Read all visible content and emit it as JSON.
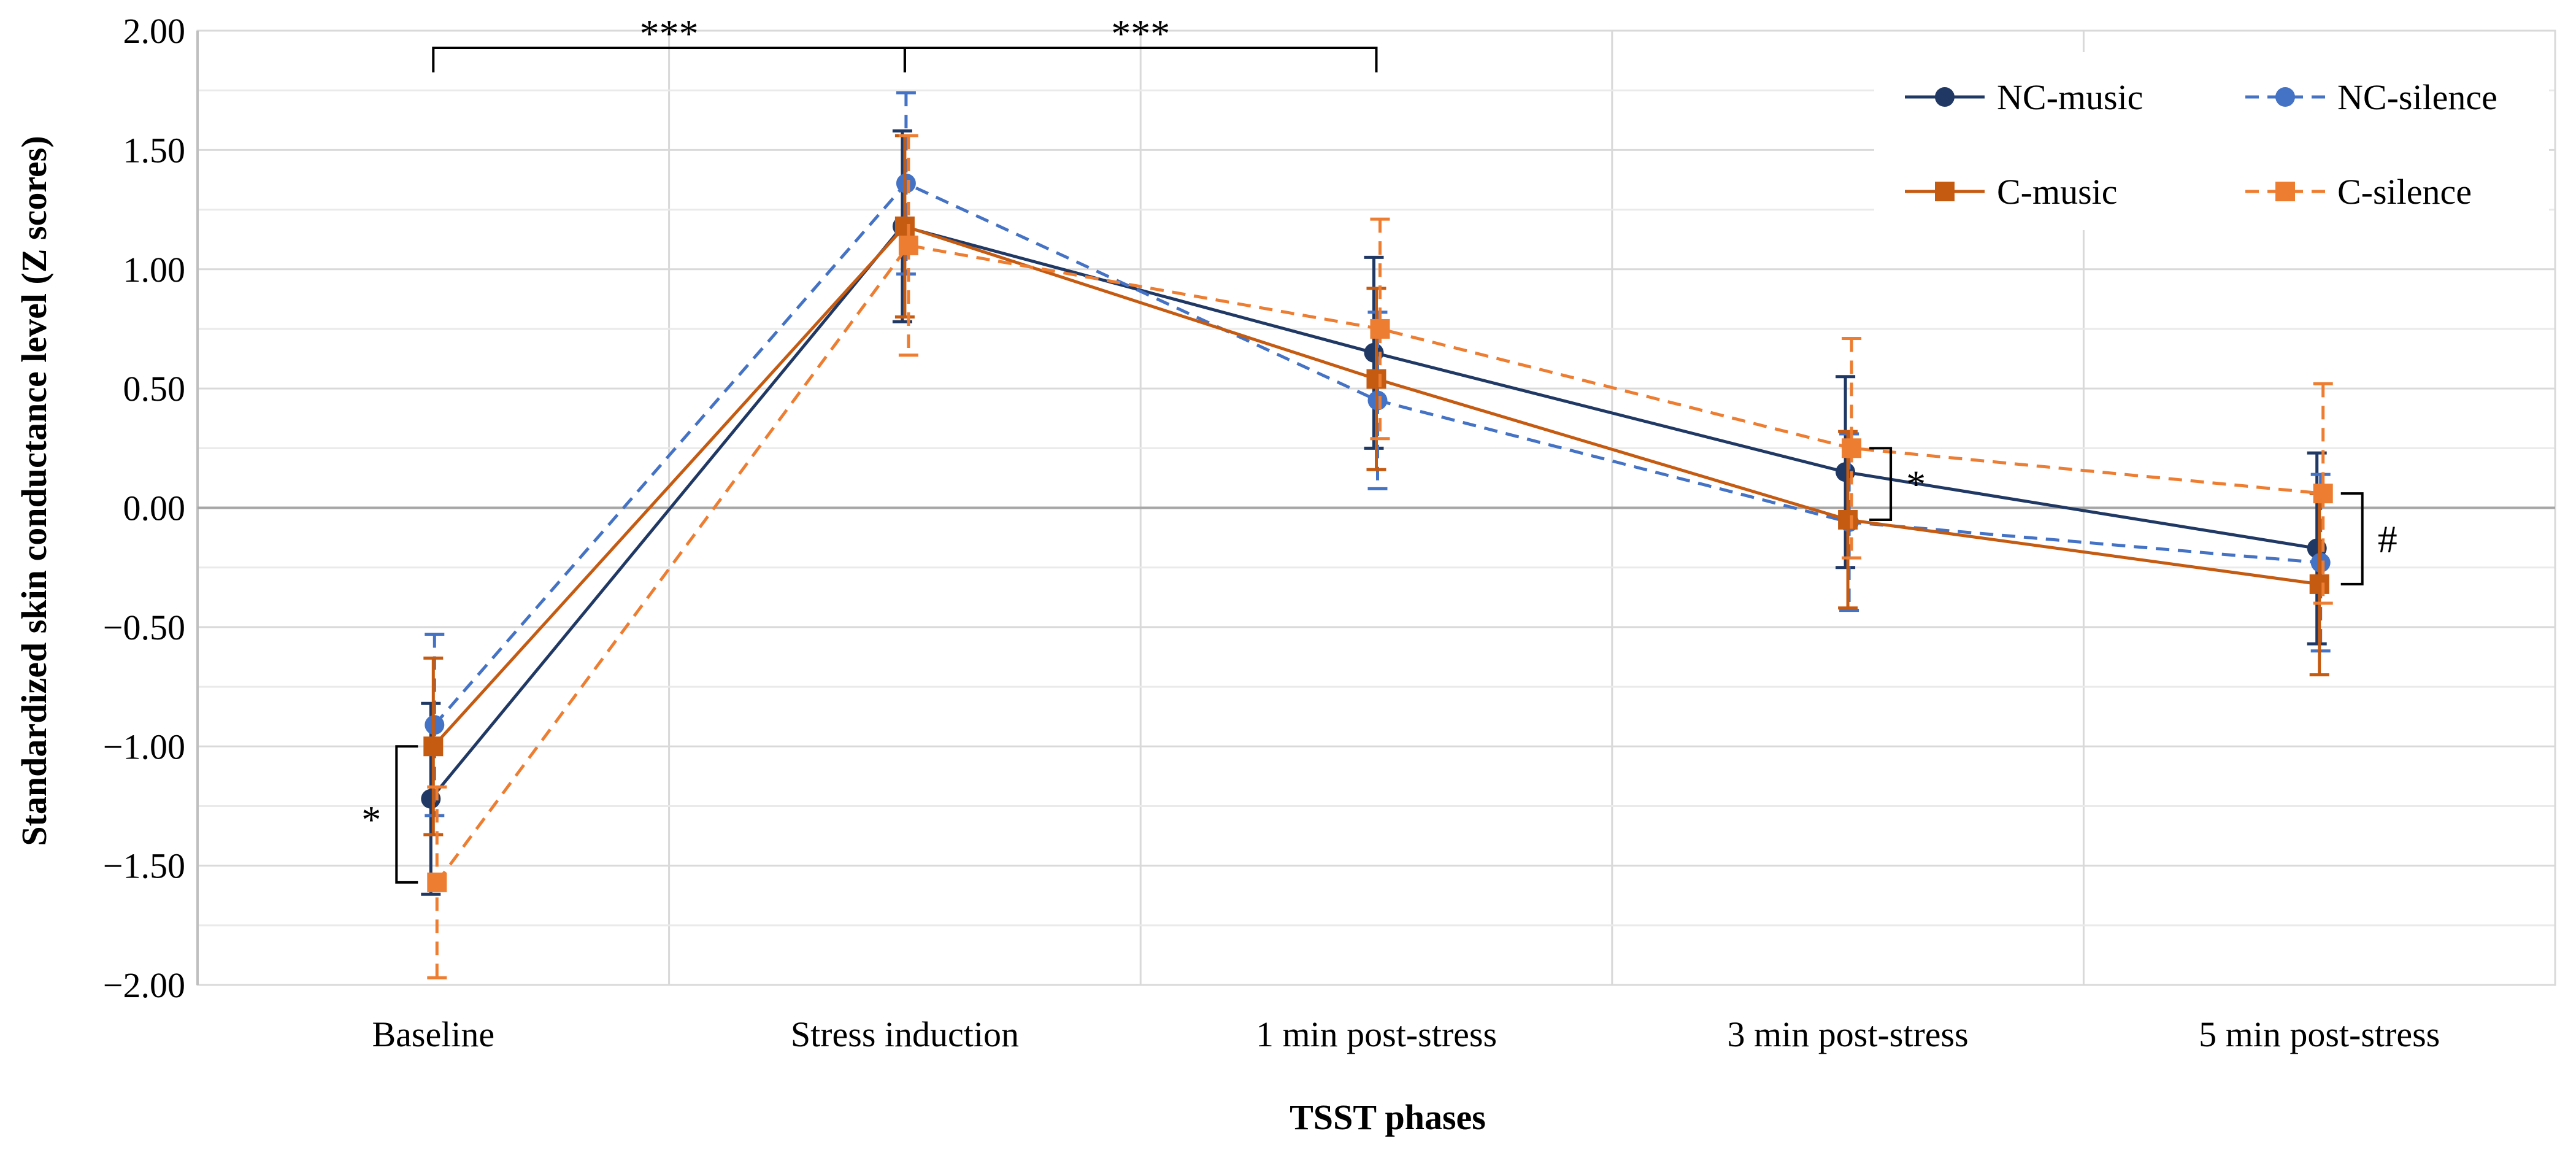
{
  "chart_data": {
    "type": "line",
    "title": "",
    "xlabel": "TSST phases",
    "ylabel": "Standardized skin conductance level (Z scores)",
    "ylim": [
      -2.0,
      2.0
    ],
    "yticks": [
      "2.00",
      "1.50",
      "1.00",
      "0.50",
      "0.00",
      "−0.50",
      "−1.00",
      "−1.50",
      "−2.00"
    ],
    "ytick_values": [
      2.0,
      1.5,
      1.0,
      0.5,
      0.0,
      -0.5,
      -1.0,
      -1.5,
      -2.0
    ],
    "categories": [
      "Baseline",
      "Stress induction",
      "1 min post-stress",
      "3 min post-stress",
      "5 min post-stress"
    ],
    "grid": true,
    "legend_position": "top-right",
    "series": [
      {
        "name": "NC-music",
        "color": "#203864",
        "dash": "solid",
        "marker": "circle",
        "values": [
          -1.22,
          1.18,
          0.65,
          0.15,
          -0.17
        ],
        "error": [
          0.4,
          0.4,
          0.4,
          0.4,
          0.4
        ]
      },
      {
        "name": "NC-silence",
        "color": "#4472C4",
        "dash": "dashed",
        "marker": "circle",
        "values": [
          -0.91,
          1.36,
          0.45,
          -0.06,
          -0.23
        ],
        "error": [
          0.38,
          0.38,
          0.37,
          0.37,
          0.37
        ]
      },
      {
        "name": "C-music",
        "color": "#C55A11",
        "dash": "solid",
        "marker": "square",
        "values": [
          -1.0,
          1.18,
          0.54,
          -0.05,
          -0.32
        ],
        "error": [
          0.37,
          0.38,
          0.38,
          0.37,
          0.38
        ]
      },
      {
        "name": "C-silence",
        "color": "#ED7D31",
        "dash": "dashed",
        "marker": "square",
        "values": [
          -1.57,
          1.1,
          0.75,
          0.25,
          0.06
        ],
        "error": [
          0.4,
          0.46,
          0.46,
          0.46,
          0.46
        ]
      }
    ],
    "annotations": [
      {
        "text": "***",
        "between": [
          "Baseline",
          "Stress induction"
        ]
      },
      {
        "text": "***",
        "between": [
          "Stress induction",
          "1 min post-stress"
        ]
      },
      {
        "text": "*",
        "at": "Baseline",
        "range": [
          -1.57,
          -1.0
        ]
      },
      {
        "text": "*",
        "at": "3 min post-stress",
        "range": [
          -0.05,
          0.25
        ]
      },
      {
        "text": "#",
        "at": "5 min post-stress",
        "range": [
          -0.32,
          0.06
        ]
      }
    ]
  }
}
